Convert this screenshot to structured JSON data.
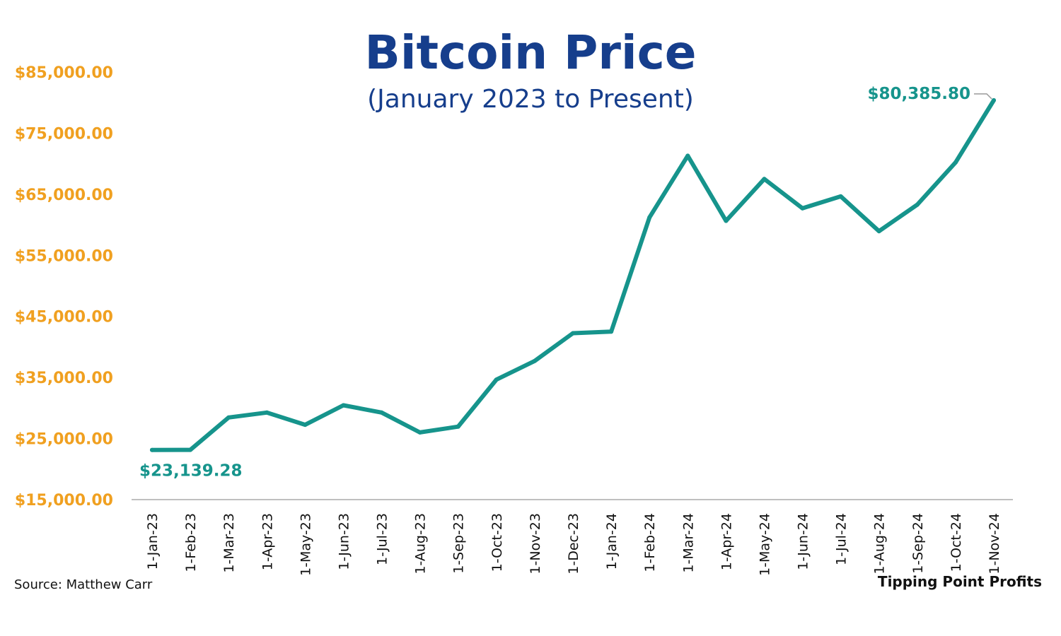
{
  "chart_data": {
    "type": "line",
    "title": "Bitcoin Price",
    "subtitle": "(January 2023 to Present)",
    "categories": [
      "1-Jan-23",
      "1-Feb-23",
      "1-Mar-23",
      "1-Apr-23",
      "1-May-23",
      "1-Jun-23",
      "1-Jul-23",
      "1-Aug-23",
      "1-Sep-23",
      "1-Oct-23",
      "1-Nov-23",
      "1-Dec-23",
      "1-Jan-24",
      "1-Feb-24",
      "1-Mar-24",
      "1-Apr-24",
      "1-May-24",
      "1-Jun-24",
      "1-Jul-24",
      "1-Aug-24",
      "1-Sep-24",
      "1-Oct-24",
      "1-Nov-24"
    ],
    "series": [
      {
        "values": [
          23139.28,
          23150,
          28450,
          29250,
          27250,
          30450,
          29250,
          26000,
          26950,
          34650,
          37700,
          42250,
          42500,
          61200,
          71300,
          60650,
          67500,
          62700,
          64650,
          58950,
          63300,
          70200,
          80385.8
        ],
        "color": "#16948c"
      }
    ],
    "ylim": [
      15000,
      85000
    ],
    "yticks": [
      "$15,000.00",
      "$25,000.00",
      "$35,000.00",
      "$45,000.00",
      "$55,000.00",
      "$65,000.00",
      "$75,000.00",
      "$85,000.00"
    ],
    "ytick_values": [
      15000,
      25000,
      35000,
      45000,
      55000,
      65000,
      75000,
      85000
    ],
    "annotations": [
      {
        "index": 0,
        "text": "$23,139.28"
      },
      {
        "index": 22,
        "text": "$80,385.80"
      }
    ],
    "xlabel": "",
    "ylabel": "",
    "grid": false,
    "legend": "none",
    "colors": {
      "line": "#16948c",
      "title": "#163e8c",
      "ytick": "#f0a020",
      "axis": "#bfbfbf"
    }
  },
  "footer": {
    "source": "Source: Matthew Carr",
    "brand": "Tipping Point Profits"
  }
}
